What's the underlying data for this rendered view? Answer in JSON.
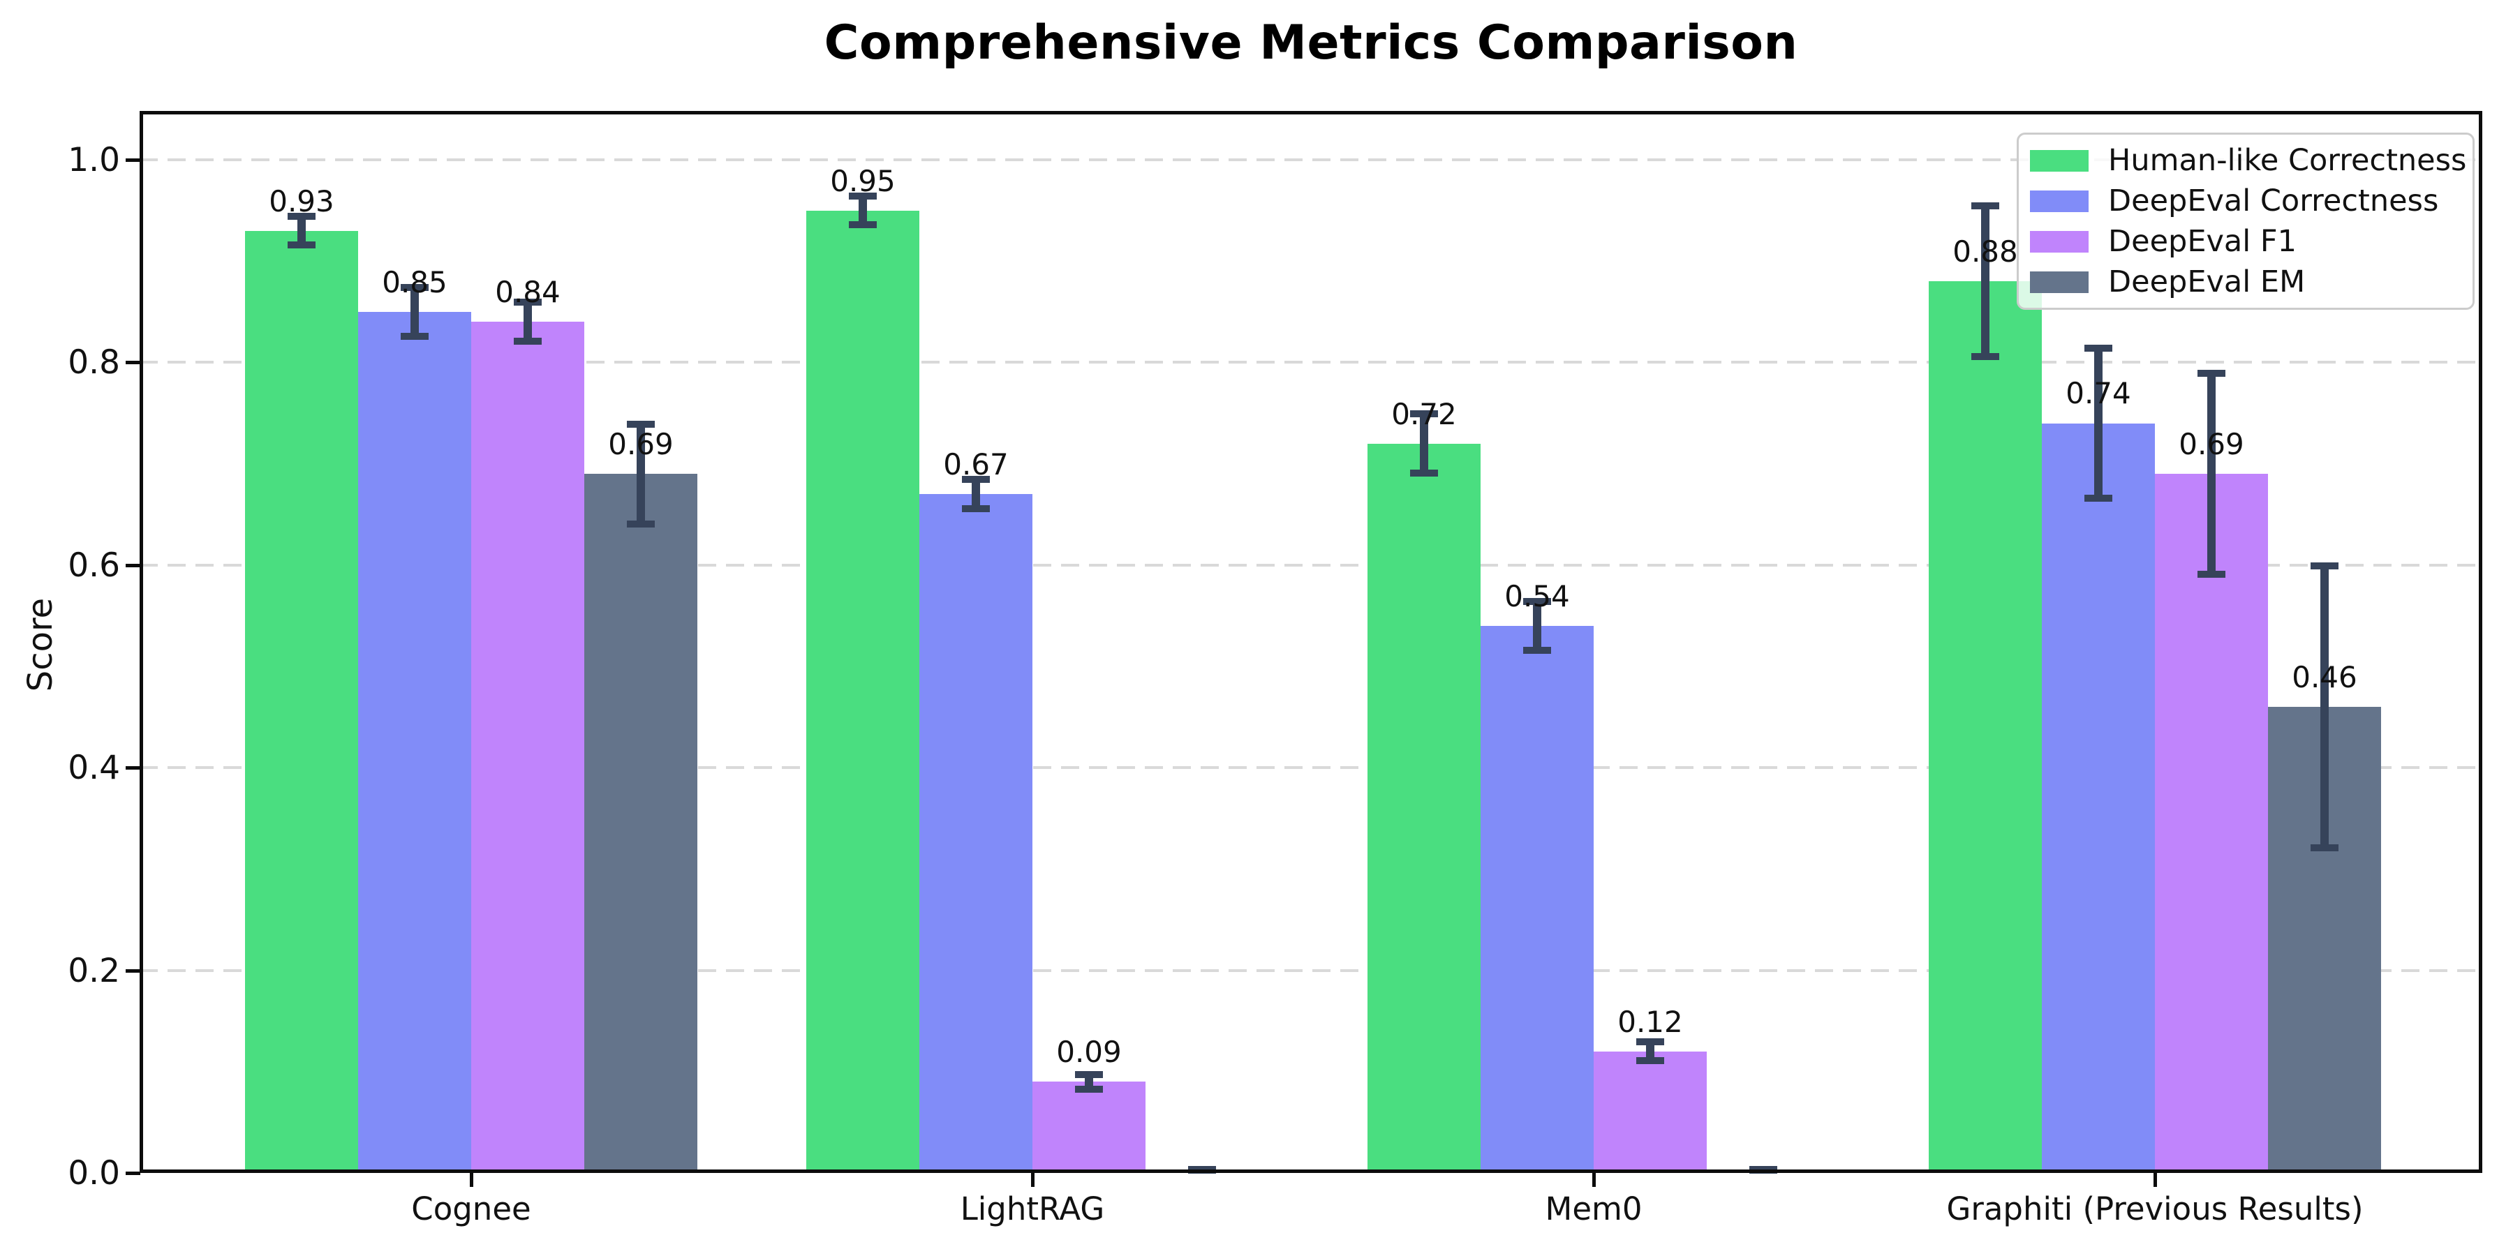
{
  "chart_data": {
    "type": "bar",
    "title": "Comprehensive Metrics Comparison",
    "xlabel": "",
    "ylabel": "Score",
    "categories": [
      "Cognee",
      "LightRAG",
      "Mem0",
      "Graphiti (Previous Results)"
    ],
    "series": [
      {
        "name": "Human-like Correctness",
        "color": "#4ade80",
        "values": [
          0.93,
          0.95,
          0.72,
          0.88
        ],
        "errors": [
          0.015,
          0.015,
          0.03,
          0.075
        ]
      },
      {
        "name": "DeepEval Correctness",
        "color": "#818cf8",
        "values": [
          0.85,
          0.67,
          0.54,
          0.74
        ],
        "errors": [
          0.025,
          0.015,
          0.025,
          0.075
        ]
      },
      {
        "name": "DeepEval F1",
        "color": "#c084fc",
        "values": [
          0.84,
          0.09,
          0.12,
          0.69
        ],
        "errors": [
          0.02,
          0.008,
          0.01,
          0.1
        ]
      },
      {
        "name": "DeepEval EM",
        "color": "#64748b",
        "values": [
          0.69,
          0.0,
          0.0,
          0.46
        ],
        "errors": [
          0.05,
          0.004,
          0.004,
          0.14
        ]
      }
    ],
    "value_labels": [
      [
        "0.93",
        "0.95",
        "0.72",
        "0.88"
      ],
      [
        "0.85",
        "0.67",
        "0.54",
        "0.74"
      ],
      [
        "0.84",
        "0.09",
        "0.12",
        "0.69"
      ],
      [
        "0.69",
        "",
        "",
        "0.46"
      ]
    ],
    "yticks": [
      "0.0",
      "0.2",
      "0.4",
      "0.6",
      "0.8",
      "1.0"
    ],
    "ylim": [
      0,
      1.048
    ],
    "grid": "horizontal-dashed",
    "grid_color": "#d9d9d9",
    "error_bar_color": "#36435a",
    "legend_position": "upper-right"
  }
}
